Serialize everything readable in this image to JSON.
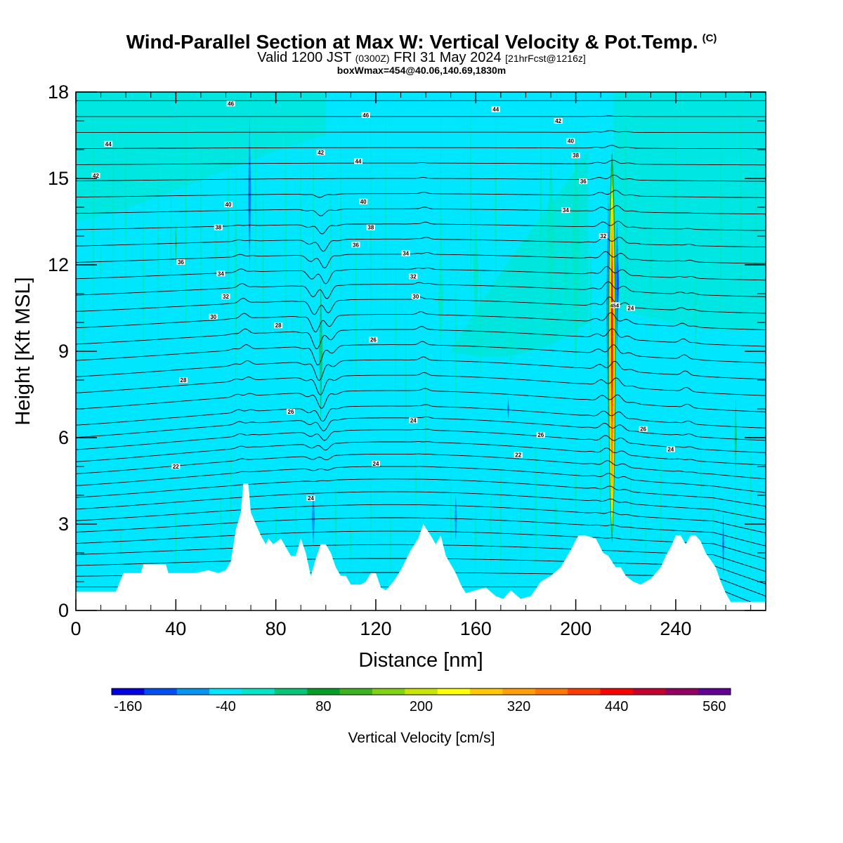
{
  "header": {
    "title": "Wind-Parallel Section at Max W: Vertical Velocity & Pot.Temp.",
    "title_mark": "(C)",
    "valid_prefix": "Valid 1200 JST",
    "valid_utc": "(0300Z)",
    "valid_date": "FRI 31 May 2024",
    "forecast": "[21hrFcst@1216z]",
    "box_info": "boxWmax=454@40.06,140.69,1830m"
  },
  "chart_data": {
    "type": "heatmap",
    "xlabel": "Distance [nm]",
    "ylabel": "Height [Kft MSL]",
    "xlim": [
      0,
      276
    ],
    "ylim": [
      0,
      18
    ],
    "x_ticks": [
      0,
      40,
      80,
      120,
      160,
      200,
      240
    ],
    "y_ticks": [
      0,
      3,
      6,
      9,
      12,
      15,
      18
    ],
    "colorbar": {
      "label": "Vertical Velocity [cm/s]",
      "tick_labels": [
        "-160",
        "-40",
        "80",
        "200",
        "320",
        "440",
        "560"
      ],
      "colors": [
        "#0000e6",
        "#0050f5",
        "#0096f5",
        "#00e6ff",
        "#00e6c8",
        "#00c878",
        "#00a028",
        "#3cb41e",
        "#82d214",
        "#c8e600",
        "#ffff00",
        "#ffc800",
        "#ffa000",
        "#ff7800",
        "#ff3c00",
        "#ff0000",
        "#c80032",
        "#960064",
        "#640096"
      ]
    },
    "terrain_kft": [
      [
        0,
        0.65
      ],
      [
        16,
        0.65
      ],
      [
        19,
        1.3
      ],
      [
        26,
        1.3
      ],
      [
        27,
        1.6
      ],
      [
        36,
        1.6
      ],
      [
        37,
        1.3
      ],
      [
        48,
        1.3
      ],
      [
        53,
        1.4
      ],
      [
        57,
        1.3
      ],
      [
        60,
        1.4
      ],
      [
        62,
        1.7
      ],
      [
        64,
        2.8
      ],
      [
        66,
        3.4
      ],
      [
        67,
        4.4
      ],
      [
        69,
        4.4
      ],
      [
        70,
        3.4
      ],
      [
        72,
        3.0
      ],
      [
        74,
        2.6
      ],
      [
        76,
        2.3
      ],
      [
        77,
        2.5
      ],
      [
        79,
        2.3
      ],
      [
        82,
        2.5
      ],
      [
        84,
        2.2
      ],
      [
        86,
        1.9
      ],
      [
        88,
        1.9
      ],
      [
        90,
        2.5
      ],
      [
        92,
        2.0
      ],
      [
        94,
        1.2
      ],
      [
        96,
        1.8
      ],
      [
        98,
        2.3
      ],
      [
        100,
        2.3
      ],
      [
        102,
        2.0
      ],
      [
        104,
        1.5
      ],
      [
        106,
        1.2
      ],
      [
        108,
        1.2
      ],
      [
        110,
        0.9
      ],
      [
        114,
        0.9
      ],
      [
        116,
        1.0
      ],
      [
        118,
        1.3
      ],
      [
        120,
        1.3
      ],
      [
        122,
        0.8
      ],
      [
        124,
        0.7
      ],
      [
        127,
        1.0
      ],
      [
        130,
        1.4
      ],
      [
        134,
        2.1
      ],
      [
        137,
        2.5
      ],
      [
        139,
        3.0
      ],
      [
        142,
        2.6
      ],
      [
        144,
        2.3
      ],
      [
        146,
        2.6
      ],
      [
        148,
        1.9
      ],
      [
        150,
        1.6
      ],
      [
        152,
        1.3
      ],
      [
        154,
        0.9
      ],
      [
        156,
        0.6
      ],
      [
        160,
        0.7
      ],
      [
        164,
        0.8
      ],
      [
        168,
        0.5
      ],
      [
        171,
        0.4
      ],
      [
        174,
        0.7
      ],
      [
        178,
        0.4
      ],
      [
        182,
        0.5
      ],
      [
        186,
        1.0
      ],
      [
        190,
        1.2
      ],
      [
        194,
        1.5
      ],
      [
        198,
        2.1
      ],
      [
        201,
        2.6
      ],
      [
        204,
        2.6
      ],
      [
        208,
        2.5
      ],
      [
        211,
        2.0
      ],
      [
        213,
        1.9
      ],
      [
        216,
        1.5
      ],
      [
        218,
        1.5
      ],
      [
        220,
        1.2
      ],
      [
        223,
        1.0
      ],
      [
        226,
        0.9
      ],
      [
        230,
        1.1
      ],
      [
        234,
        1.5
      ],
      [
        236,
        1.9
      ],
      [
        238,
        2.2
      ],
      [
        240,
        2.6
      ],
      [
        242,
        2.6
      ],
      [
        244,
        2.3
      ],
      [
        246,
        2.6
      ],
      [
        248,
        2.6
      ],
      [
        250,
        2.4
      ],
      [
        252,
        2.0
      ],
      [
        256,
        1.5
      ],
      [
        258,
        1.0
      ],
      [
        260,
        0.6
      ],
      [
        262,
        0.3
      ],
      [
        276,
        0.3
      ]
    ],
    "theta_labels": [
      "46",
      "44",
      "42",
      "40",
      "38",
      "36",
      "34",
      "32",
      "30",
      "28",
      "26",
      "24",
      "22",
      "46",
      "44",
      "42",
      "40",
      "38",
      "36",
      "34",
      "32",
      "30",
      "28",
      "26",
      "24",
      "22",
      "44",
      "42",
      "40",
      "38",
      "36",
      "34",
      "32",
      "28",
      "24",
      "26",
      "24",
      "26",
      "24"
    ],
    "w_max_label": "454"
  }
}
